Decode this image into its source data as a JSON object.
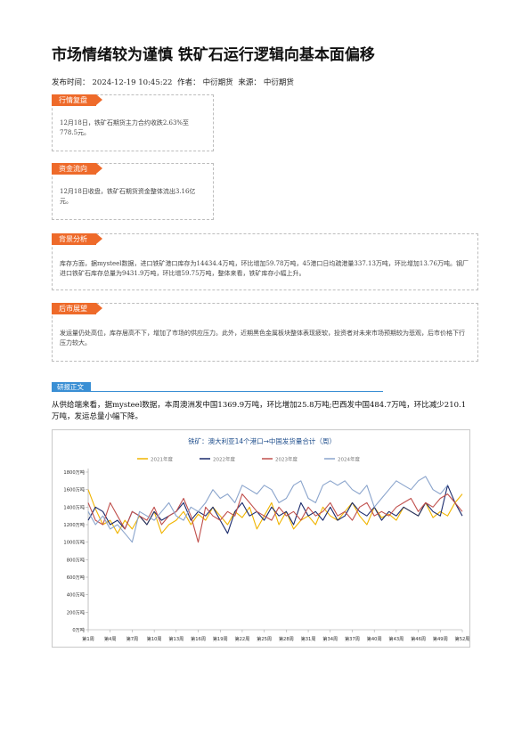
{
  "article": {
    "title": "市场情绪较为谨慎 铁矿石运行逻辑向基本面偏移",
    "meta": {
      "publish_label": "发布时间：",
      "publish_time": "2024-12-19 10:45:22",
      "author_label": "作者：",
      "author": "中衍期货",
      "source_label": "来源：",
      "source": "中衍期货"
    }
  },
  "sections": {
    "market_review": {
      "tag": "行情复盘",
      "text": "12月18日，铁矿石期货主力合约收跌2.63%至778.5元。"
    },
    "fund_flow": {
      "tag": "资金流向",
      "text": "12月18日收盘，铁矿石期货资金整体流出3.16亿元。"
    },
    "background": {
      "tag": "背景分析",
      "text": "库存方面，据mysteel数据，进口铁矿港口库存为14434.4万吨，环比增加59.78万吨，45港口日均疏港量337.13万吨，环比增加13.76万吨。钢厂进口铁矿石库存总量为9431.9万吨，环比增59.75万吨，整体来看，铁矿库存小幅上升。"
    },
    "outlook": {
      "tag": "后市展望",
      "text": "发运量仍处高位，库存居高不下，增加了市场的供应压力。此外，近期黑色金属板块整体表现疲软，投资者对未来市场预期较为悲观，后市价格下行压力较大。"
    }
  },
  "research": {
    "tag": "研报正文",
    "text": "从供给端来看，据mysteel数据，本周澳洲发中国1369.9万吨，环比增加25.8万吨;巴西发中国484.7万吨，环比减少210.1万吨，发运总量小幅下降。"
  },
  "chart_data": {
    "type": "line",
    "title": "铁矿：澳大利亚14个港口→中国发货量合计（周）",
    "ylim": [
      0,
      1800
    ],
    "y_ticks": [
      "0万吨",
      "200万吨",
      "400万吨",
      "600万吨",
      "800万吨",
      "1000万吨",
      "1200万吨",
      "1400万吨",
      "1600万吨",
      "1800万吨"
    ],
    "x_ticks": [
      "第1周",
      "第4周",
      "第7周",
      "第10周",
      "第13周",
      "第16周",
      "第19周",
      "第22周",
      "第25周",
      "第28周",
      "第31周",
      "第34周",
      "第37周",
      "第40周",
      "第43周",
      "第46周",
      "第49周",
      "第52周"
    ],
    "x_tick_weeks": [
      1,
      4,
      7,
      10,
      13,
      16,
      19,
      22,
      25,
      28,
      31,
      34,
      37,
      40,
      43,
      46,
      49,
      52
    ],
    "legend_position": "top",
    "grid": false,
    "series": [
      {
        "name": "2021年度",
        "color": "#f0b400",
        "values": [
          1600,
          1380,
          1200,
          1250,
          1100,
          1250,
          1150,
          1300,
          1200,
          1350,
          1100,
          1200,
          1250,
          1350,
          1200,
          1320,
          1250,
          1400,
          1300,
          1200,
          1350,
          1280,
          1400,
          1150,
          1300,
          1450,
          1200,
          1350,
          1150,
          1250,
          1300,
          1200,
          1400,
          1300,
          1250,
          1350,
          1450,
          1300,
          1200,
          1400,
          1280,
          1320,
          1250,
          1400,
          1350,
          1300,
          1450,
          1280,
          1350,
          1300,
          1450,
          1550
        ]
      },
      {
        "name": "2022年度",
        "color": "#1a2a6c",
        "values": [
          1250,
          1400,
          1350,
          1200,
          1250,
          1150,
          1350,
          1300,
          1200,
          1350,
          1250,
          1300,
          1350,
          1450,
          1250,
          1350,
          1300,
          1400,
          1250,
          1100,
          1350,
          1450,
          1300,
          1350,
          1250,
          1400,
          1300,
          1350,
          1200,
          1450,
          1300,
          1350,
          1250,
          1400,
          1250,
          1300,
          1450,
          1350,
          1300,
          1400,
          1250,
          1350,
          1300,
          1400,
          1350,
          1300,
          1450,
          1350,
          1300,
          1650,
          1450,
          1300
        ]
      },
      {
        "name": "2023年度",
        "color": "#c0504d",
        "values": [
          1450,
          1250,
          1200,
          1450,
          1300,
          1150,
          1350,
          1300,
          1250,
          1400,
          1200,
          1300,
          1350,
          1500,
          1300,
          1000,
          1400,
          1300,
          1250,
          1350,
          1300,
          1550,
          1450,
          1350,
          1300,
          1250,
          1400,
          1300,
          1350,
          1250,
          1400,
          1300,
          1350,
          1450,
          1300,
          1350,
          1250,
          1400,
          1450,
          1300,
          1350,
          1300,
          1400,
          1450,
          1500,
          1350,
          1450,
          1400,
          1500,
          1550,
          1450,
          1350
        ]
      },
      {
        "name": "2024年度",
        "color": "#8aa4cc",
        "values": [
          1350,
          1200,
          1300,
          1150,
          1200,
          1100,
          1000,
          1350,
          1300,
          1250,
          1350,
          1450,
          1300,
          1250,
          1400,
          1350,
          1450,
          1600,
          1500,
          1550,
          1450,
          1650,
          1600,
          1550,
          1650,
          1600,
          1450,
          1500,
          1650,
          1700,
          1500,
          1450,
          1650,
          1700,
          1650,
          1700,
          1600,
          1550,
          1650,
          1400,
          1500,
          1600,
          1700,
          1650,
          1600,
          1700,
          1750,
          1600,
          1550,
          1650
        ]
      }
    ]
  }
}
